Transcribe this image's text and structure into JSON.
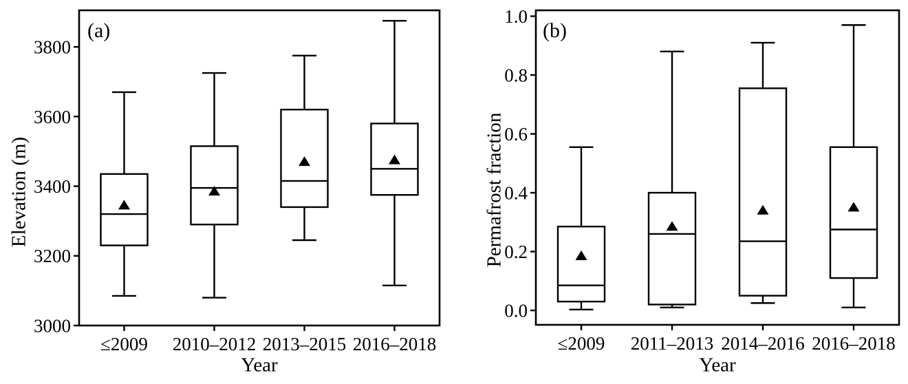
{
  "figure": {
    "background": "#ffffff",
    "line_color": "#000000"
  },
  "chart_data": [
    {
      "type": "box",
      "panel_label": "(a)",
      "xlabel": "Year",
      "ylabel": "Elevation (m)",
      "grid": false,
      "legend": null,
      "ylim": [
        3000,
        3905
      ],
      "yticks": [
        3000,
        3200,
        3400,
        3600,
        3800
      ],
      "ytick_labels": [
        "3000",
        "3200",
        "3400",
        "3600",
        "3800"
      ],
      "categories": [
        "≤2009",
        "2010–2012",
        "2013–2015",
        "2016–2018"
      ],
      "boxes": [
        {
          "whisker_low": 3085,
          "q1": 3230,
          "median": 3320,
          "q3": 3435,
          "whisker_high": 3670,
          "mean": 3345
        },
        {
          "whisker_low": 3080,
          "q1": 3290,
          "median": 3395,
          "q3": 3515,
          "whisker_high": 3725,
          "mean": 3385
        },
        {
          "whisker_low": 3245,
          "q1": 3340,
          "median": 3415,
          "q3": 3620,
          "whisker_high": 3775,
          "mean": 3470
        },
        {
          "whisker_low": 3115,
          "q1": 3375,
          "median": 3450,
          "q3": 3580,
          "whisker_high": 3875,
          "mean": 3475
        }
      ],
      "mean_marker": "filled-triangle-up"
    },
    {
      "type": "box",
      "panel_label": "(b)",
      "xlabel": "Year",
      "ylabel": "Permafrost fraction",
      "grid": false,
      "legend": null,
      "ylim": [
        -0.049,
        1.02
      ],
      "yticks": [
        0.0,
        0.2,
        0.4,
        0.6,
        0.8,
        1.0
      ],
      "ytick_labels": [
        "0.0",
        "0.2",
        "0.4",
        "0.6",
        "0.8",
        "1.0"
      ],
      "categories": [
        "≤2009",
        "2011–2013",
        "2014–2016",
        "2016–2018"
      ],
      "boxes": [
        {
          "whisker_low": 0.003,
          "q1": 0.03,
          "median": 0.085,
          "q3": 0.285,
          "whisker_high": 0.555,
          "mean": 0.185
        },
        {
          "whisker_low": 0.01,
          "q1": 0.02,
          "median": 0.26,
          "q3": 0.4,
          "whisker_high": 0.88,
          "mean": 0.285
        },
        {
          "whisker_low": 0.025,
          "q1": 0.05,
          "median": 0.235,
          "q3": 0.755,
          "whisker_high": 0.91,
          "mean": 0.34
        },
        {
          "whisker_low": 0.01,
          "q1": 0.11,
          "median": 0.275,
          "q3": 0.555,
          "whisker_high": 0.97,
          "mean": 0.35
        }
      ],
      "mean_marker": "filled-triangle-up"
    }
  ]
}
